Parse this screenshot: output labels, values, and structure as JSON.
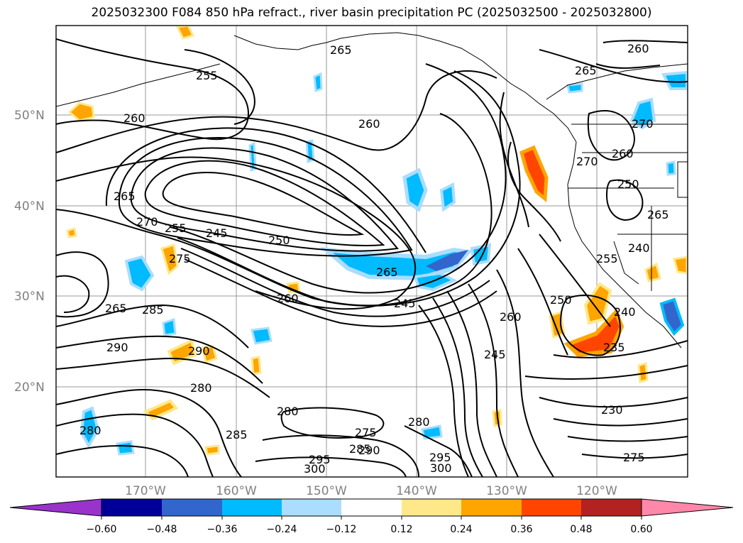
{
  "title": "2025032300 F084 850 hPa refract., river basin precipitation PC (2025032500 - 2025032800)",
  "lat_labels": [
    "50°N",
    "40°N",
    "30°N",
    "20°N"
  ],
  "lon_labels": [
    "170°W",
    "160°W",
    "150°W",
    "140°W",
    "130°W",
    "120°W"
  ],
  "contour_labels": [
    "265",
    "260",
    "255",
    "260",
    "265",
    "260",
    "270",
    "275",
    "255",
    "245",
    "250",
    "265",
    "260",
    "245",
    "265",
    "285",
    "290",
    "290",
    "280",
    "280",
    "285",
    "275",
    "280",
    "285",
    "290",
    "295",
    "300",
    "280",
    "295",
    "300",
    "260",
    "245",
    "250",
    "240",
    "235",
    "230",
    "255",
    "240",
    "270",
    "265",
    "260",
    "250",
    "270",
    "275",
    "265"
  ],
  "colorbar": {
    "tick_labels": [
      "−0.60",
      "−0.48",
      "−0.36",
      "−0.24",
      "−0.12",
      "0.12",
      "0.24",
      "0.36",
      "0.48",
      "0.60"
    ],
    "colors": [
      "#9933cc",
      "#000099",
      "#3366cc",
      "#00bbff",
      "#aaddff",
      "#ffffff",
      "#ffe88a",
      "#ffa500",
      "#ff4500",
      "#b22222",
      "#ff88aa"
    ]
  }
}
